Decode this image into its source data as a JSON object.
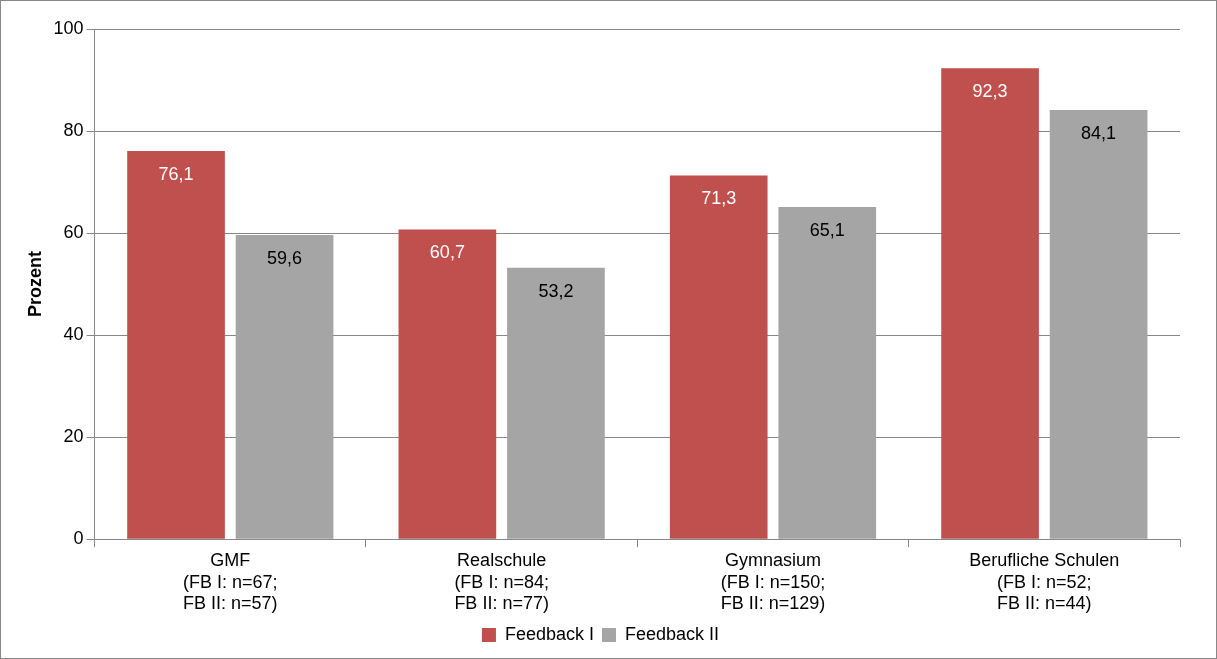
{
  "chart_data": {
    "type": "bar",
    "ylabel": "Prozent",
    "categories": [
      "GMF\n(FB I: n=67;\nFB II: n=57)",
      "Realschule\n(FB I: n=84;\nFB II: n=77)",
      "Gymnasium\n(FB I: n=150;\nFB II: n=129)",
      "Berufliche Schulen\n(FB I: n=52;\nFB II: n=44)"
    ],
    "series": [
      {
        "name": "Feedback I",
        "color": "#c0504d",
        "values": [
          76.1,
          60.7,
          71.3,
          92.3
        ],
        "value_labels": [
          "76,1",
          "60,7",
          "71,3",
          "92,3"
        ]
      },
      {
        "name": "Feedback II",
        "color": "#a5a5a5",
        "values": [
          59.6,
          53.2,
          65.1,
          84.1
        ],
        "value_labels": [
          "59,6",
          "53,2",
          "65,1",
          "84,1"
        ]
      }
    ],
    "ylim": [
      0,
      100
    ],
    "yticks": [
      0,
      20,
      40,
      60,
      80,
      100
    ],
    "grid": "y",
    "legend": "bottom"
  }
}
